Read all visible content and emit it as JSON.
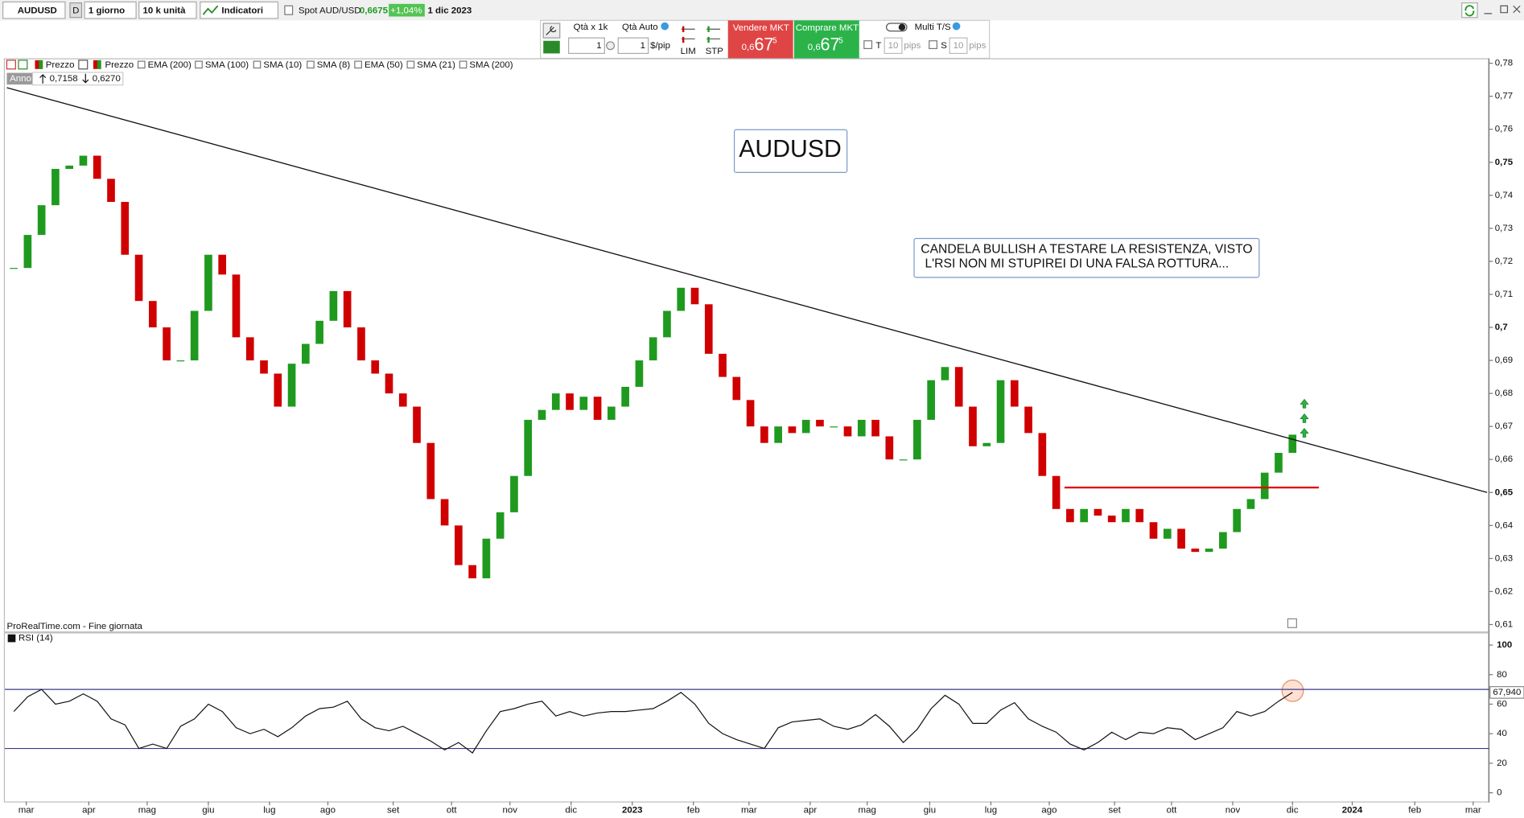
{
  "toolbar": {
    "symbol": "AUDUSD",
    "period_letter": "D",
    "period": "1 giorno",
    "units": "10 k unità",
    "indicators": "Indicatori",
    "spot_label": "Spot AUD/USD",
    "spot_price": "0,6675",
    "change": "+1,04%",
    "date": "1 dic 2023"
  },
  "order_panel": {
    "qty_label": "Qtà  x 1k",
    "qty_auto": "Qtà Auto",
    "qty": "1",
    "qty2": "1",
    "per_pip": "$/pip",
    "lim": "LIM",
    "stp": "STP",
    "sell": {
      "label": "Vendere MKT",
      "small": "0,6",
      "big": "67",
      "sup": "5"
    },
    "buy": {
      "label": "Comprare MKT",
      "small": "0,6",
      "big": "67",
      "sup": "5"
    },
    "t": "T",
    "t_pips": "10",
    "t_unit": "pips",
    "multi": "Multi T/S",
    "s": "S",
    "s_pips": "10",
    "s_unit": "pips"
  },
  "indicator_bar": {
    "items": [
      "Prezzo",
      "Prezzo",
      "EMA (200)",
      "SMA (100)",
      "SMA (10)",
      "SMA (8)",
      "EMA (50)",
      "SMA (21)",
      "SMA (200)"
    ],
    "range_label": "Anno",
    "range_high": "0,7158",
    "range_low": "0,6270"
  },
  "chart_data": [
    {
      "type": "candlestick",
      "title": "AUDUSD",
      "annotation": [
        "CANDELA BULLISH A TESTARE LA RESISTENZA, VISTO",
        "L'RSI NON MI STUPIREI DI UNA FALSA ROTTURA..."
      ],
      "source": "ProRealTime.com - Fine giornata",
      "up_color": "#1f9a1f",
      "down_color": "#d00000",
      "values": [
        0.718,
        0.728,
        0.737,
        0.748,
        0.749,
        0.752,
        0.745,
        0.738,
        0.722,
        0.708,
        0.7,
        0.69,
        0.69,
        0.705,
        0.722,
        0.716,
        0.697,
        0.69,
        0.686,
        0.676,
        0.689,
        0.695,
        0.702,
        0.711,
        0.7,
        0.69,
        0.686,
        0.68,
        0.676,
        0.665,
        0.648,
        0.64,
        0.628,
        0.624,
        0.636,
        0.644,
        0.655,
        0.672,
        0.675,
        0.68,
        0.675,
        0.679,
        0.672,
        0.676,
        0.682,
        0.69,
        0.697,
        0.705,
        0.712,
        0.707,
        0.692,
        0.685,
        0.678,
        0.67,
        0.665,
        0.67,
        0.668,
        0.672,
        0.67,
        0.67,
        0.667,
        0.672,
        0.667,
        0.66,
        0.66,
        0.672,
        0.684,
        0.688,
        0.676,
        0.664,
        0.665,
        0.684,
        0.676,
        0.668,
        0.655,
        0.645,
        0.641,
        0.645,
        0.643,
        0.641,
        0.645,
        0.641,
        0.636,
        0.639,
        0.633,
        0.632,
        0.633,
        0.638,
        0.645,
        0.648,
        0.656,
        0.662,
        0.6675
      ],
      "lines": [
        {
          "x": [
            -0.5,
            106
          ],
          "values": [
            0.7726,
            0.65
          ],
          "color": "#111111"
        },
        {
          "x": [
            75.6,
            93.9
          ],
          "values": [
            0.6515,
            0.6515
          ],
          "color": "#e00000"
        }
      ],
      "xlim": [
        -0.5,
        106
      ],
      "ylim": [
        0.6079,
        0.7815
      ],
      "xticks": [
        {
          "value": 0.9,
          "label": "mar"
        },
        {
          "value": 5.4,
          "label": "apr"
        },
        {
          "value": 9.6,
          "label": "mag"
        },
        {
          "value": 14.0,
          "label": "giu"
        },
        {
          "value": 18.4,
          "label": "lug"
        },
        {
          "value": 22.6,
          "label": "ago"
        },
        {
          "value": 27.3,
          "label": "set"
        },
        {
          "value": 31.5,
          "label": "ott"
        },
        {
          "value": 35.7,
          "label": "nov"
        },
        {
          "value": 40.1,
          "label": "dic"
        },
        {
          "value": 44.5,
          "label": "2023"
        },
        {
          "value": 48.9,
          "label": "feb"
        },
        {
          "value": 52.9,
          "label": "mar"
        },
        {
          "value": 57.3,
          "label": "apr"
        },
        {
          "value": 61.4,
          "label": "mag"
        },
        {
          "value": 65.9,
          "label": "giu"
        },
        {
          "value": 70.3,
          "label": "lug"
        },
        {
          "value": 74.5,
          "label": "ago"
        },
        {
          "value": 79.2,
          "label": "set"
        },
        {
          "value": 83.3,
          "label": "ott"
        },
        {
          "value": 87.7,
          "label": "nov"
        },
        {
          "value": 92.0,
          "label": "dic"
        },
        {
          "value": 96.3,
          "label": "2024"
        },
        {
          "value": 100.8,
          "label": "feb"
        },
        {
          "value": 105.0,
          "label": "mar"
        }
      ],
      "yticks": [
        {
          "value": 0.61,
          "label": "0,61"
        },
        {
          "value": 0.62,
          "label": "0,62"
        },
        {
          "value": 0.63,
          "label": "0,63"
        },
        {
          "value": 0.64,
          "label": "0,64"
        },
        {
          "value": 0.65,
          "label": "0,65"
        },
        {
          "value": 0.66,
          "label": "0,66"
        },
        {
          "value": 0.67,
          "label": "0,67"
        },
        {
          "value": 0.68,
          "label": "0,68"
        },
        {
          "value": 0.69,
          "label": "0,69"
        },
        {
          "value": 0.7,
          "label": "0,7"
        },
        {
          "value": 0.71,
          "label": "0,71"
        },
        {
          "value": 0.72,
          "label": "0,72"
        },
        {
          "value": 0.73,
          "label": "0,73"
        },
        {
          "value": 0.74,
          "label": "0,74"
        },
        {
          "value": 0.75,
          "label": "0,75"
        },
        {
          "value": 0.76,
          "label": "0,76"
        },
        {
          "value": 0.77,
          "label": "0,77"
        },
        {
          "value": 0.78,
          "label": "0,78"
        }
      ]
    },
    {
      "type": "line",
      "series": [
        {
          "name": "RSI (14)",
          "color": "#111111",
          "values": [
            55,
            65,
            70,
            60,
            62,
            67,
            62,
            50,
            46,
            30,
            33,
            30,
            45,
            50,
            60,
            55,
            44,
            40,
            43,
            38,
            44,
            52,
            57,
            58,
            62,
            50,
            44,
            42,
            45,
            40,
            35,
            29,
            34,
            27,
            42,
            55,
            57,
            60,
            62,
            52,
            55,
            52,
            54,
            55,
            55,
            56,
            57,
            62,
            68,
            60,
            47,
            40,
            36,
            33,
            30,
            44,
            48,
            49,
            50,
            45,
            43,
            46,
            53,
            45,
            34,
            43,
            57,
            66,
            60,
            47,
            47,
            56,
            61,
            50,
            45,
            41,
            33,
            29,
            34,
            41,
            36,
            41,
            40,
            44,
            43,
            36,
            40,
            44,
            55,
            52,
            55,
            62,
            67.94
          ],
          "value_labels_last": "67,940"
        }
      ],
      "levels": [
        30,
        70
      ],
      "level_color": "#3a3a8c",
      "xlim": [
        -0.5,
        106
      ],
      "ylim": [
        -5.9,
        107.9
      ],
      "yticks": [
        0,
        20,
        40,
        60,
        80,
        100
      ]
    }
  ]
}
